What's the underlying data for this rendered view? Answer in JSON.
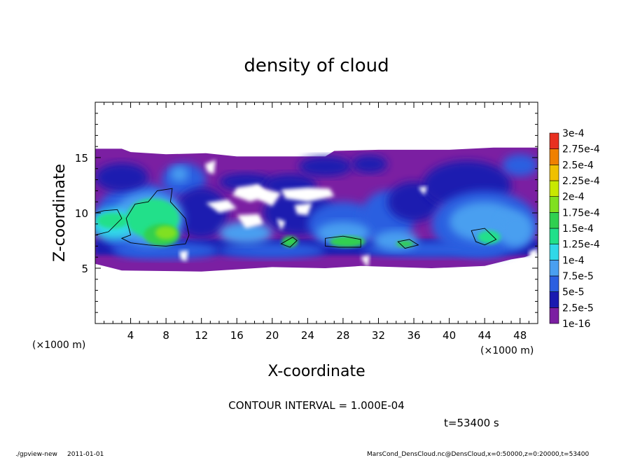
{
  "chart_data": {
    "type": "heatmap",
    "title": "density of cloud",
    "xlabel": "X-coordinate",
    "ylabel": "Z-coordinate",
    "x_unit": "(×1000 m)",
    "z_unit": "(×1000 m)",
    "xlim": [
      0,
      50
    ],
    "ylim": [
      0,
      20
    ],
    "x_ticks": [
      "4",
      "8",
      "12",
      "16",
      "20",
      "24",
      "28",
      "32",
      "36",
      "40",
      "44",
      "48"
    ],
    "x_tick_values": [
      4,
      8,
      12,
      16,
      20,
      24,
      28,
      32,
      36,
      40,
      44,
      48
    ],
    "y_ticks": [
      "5",
      "10",
      "15"
    ],
    "y_tick_values": [
      5,
      10,
      15
    ],
    "colorbar": {
      "labels": [
        "1e-16",
        "2.5e-5",
        "5e-5",
        "7.5e-5",
        "1e-4",
        "1.25e-4",
        "1.5e-4",
        "1.75e-4",
        "2e-4",
        "2.25e-4",
        "2.5e-4",
        "2.75e-4",
        "3e-4"
      ],
      "colors": [
        "#7b1fa2",
        "#1a1ab0",
        "#2b5fe0",
        "#4a9ff0",
        "#30d8e8",
        "#20e08a",
        "#30d050",
        "#80e020",
        "#c8e800",
        "#f0c000",
        "#f08000",
        "#e83020",
        "#f07080"
      ]
    },
    "cloud_layer_z": [
      4.8,
      15.8
    ],
    "contour_level": 0.0001,
    "footer": {
      "contour_interval": "CONTOUR INTERVAL = 1.000E-04",
      "time": "t=53400 s",
      "program": "./gpview-new",
      "date": "2011-01-01",
      "source": "MarsCond_DensCloud.nc@DensCloud,x=0:50000,z=0:20000,t=53400"
    }
  }
}
